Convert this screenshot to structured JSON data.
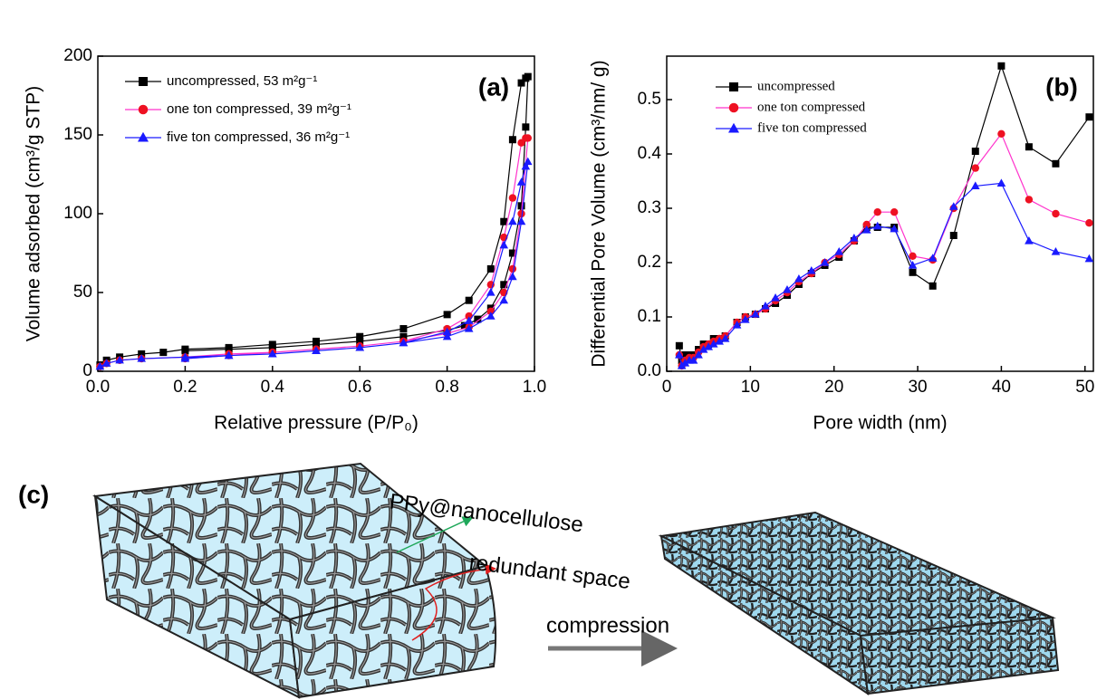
{
  "chart_data": [
    {
      "type": "line",
      "title": "(a)",
      "xlabel": "Relative pressure (P/P₀)",
      "ylabel": "Volume adsorbed (cm³/g STP)",
      "xlim": [
        0,
        1
      ],
      "ylim": [
        0,
        200
      ],
      "xticks": [
        {
          "value": 0,
          "label": "0.0"
        },
        {
          "value": 0.2,
          "label": "0.2"
        },
        {
          "value": 0.4,
          "label": "0.4"
        },
        {
          "value": 0.6,
          "label": "0.6"
        },
        {
          "value": 0.8,
          "label": "0.8"
        },
        {
          "value": 1,
          "label": "1.0"
        }
      ],
      "yticks": [
        0,
        50,
        100,
        150,
        200
      ],
      "series": [
        {
          "name": "uncompressed, 53 m²g⁻¹",
          "color": "#000000",
          "line_color": "#000000",
          "marker": "square",
          "x": [
            0.005,
            0.02,
            0.05,
            0.1,
            0.15,
            0.2,
            0.3,
            0.4,
            0.5,
            0.6,
            0.7,
            0.8,
            0.85,
            0.9,
            0.93,
            0.95,
            0.97,
            0.98,
            0.985,
            0.98,
            0.97,
            0.95,
            0.93,
            0.9,
            0.87,
            0.84,
            0.8,
            0.7,
            0.6,
            0.5,
            0.4,
            0.3,
            0.2
          ],
          "values": [
            4,
            7,
            9,
            11,
            12,
            14,
            15,
            17,
            19,
            22,
            27,
            36,
            45,
            65,
            95,
            147,
            183,
            186,
            187,
            155,
            105,
            75,
            55,
            40,
            33,
            29,
            26,
            22,
            19,
            17,
            15,
            14,
            13
          ]
        },
        {
          "name": "one ton compressed, 39 m²g⁻¹",
          "color": "#ee1122",
          "line_color": "#ff33cc",
          "marker": "circle",
          "x": [
            0.005,
            0.02,
            0.05,
            0.1,
            0.2,
            0.3,
            0.4,
            0.5,
            0.6,
            0.7,
            0.8,
            0.85,
            0.9,
            0.93,
            0.95,
            0.97,
            0.98,
            0.985,
            0.97,
            0.95,
            0.93,
            0.9,
            0.85,
            0.8,
            0.7,
            0.6,
            0.5,
            0.4,
            0.3,
            0.2
          ],
          "values": [
            3,
            5,
            7,
            8,
            9,
            11,
            12,
            14,
            16,
            19,
            27,
            35,
            55,
            85,
            110,
            145,
            148,
            148,
            100,
            65,
            50,
            38,
            28,
            24,
            19,
            16,
            14,
            12,
            10,
            8
          ]
        },
        {
          "name": "five ton compressed, 36 m²g⁻¹",
          "color": "#1a1aff",
          "line_color": "#1a1aff",
          "marker": "triangle",
          "x": [
            0.005,
            0.02,
            0.05,
            0.1,
            0.2,
            0.3,
            0.4,
            0.5,
            0.6,
            0.7,
            0.8,
            0.85,
            0.9,
            0.93,
            0.95,
            0.97,
            0.98,
            0.985,
            0.97,
            0.95,
            0.93,
            0.9,
            0.85,
            0.8,
            0.7,
            0.6,
            0.5,
            0.4,
            0.3,
            0.2
          ],
          "values": [
            3,
            5,
            7,
            8,
            9,
            10,
            11,
            13,
            15,
            18,
            25,
            32,
            50,
            80,
            95,
            120,
            130,
            133,
            95,
            60,
            45,
            35,
            27,
            22,
            18,
            15,
            13,
            11,
            10,
            8
          ]
        }
      ]
    },
    {
      "type": "line",
      "title": "(b)",
      "xlabel": "Pore width (nm)",
      "ylabel": "Differential Pore Volume (cm³/nm/ g)",
      "xlim": [
        0,
        51
      ],
      "ylim": [
        0,
        0.58
      ],
      "xticks": [
        0,
        10,
        20,
        30,
        40,
        50
      ],
      "yticks": [
        {
          "value": 0,
          "label": "0.0"
        },
        0.1,
        0.2,
        0.3,
        0.4,
        0.5
      ],
      "x": [
        1.5,
        1.8,
        2.2,
        2.7,
        3.2,
        3.8,
        4.4,
        5,
        5.6,
        6.3,
        7,
        8.4,
        9.4,
        10.6,
        11.8,
        13,
        14.4,
        15.8,
        17.3,
        18.9,
        20.6,
        22.4,
        23.9,
        25.2,
        27.2,
        29.4,
        31.8,
        34.3,
        36.9,
        40,
        43.3,
        46.5,
        50.5
      ],
      "series": [
        {
          "name": "uncompressed",
          "color": "#000000",
          "line_color": "#000000",
          "marker": "square",
          "values": [
            0.047,
            0.02,
            0.03,
            0.03,
            0.03,
            0.04,
            0.05,
            0.05,
            0.06,
            0.06,
            0.065,
            0.09,
            0.1,
            0.105,
            0.115,
            0.125,
            0.14,
            0.16,
            0.18,
            0.195,
            0.21,
            0.24,
            0.265,
            0.265,
            0.265,
            0.182,
            0.157,
            0.25,
            0.405,
            0.562,
            0.413,
            0.382,
            0.468
          ]
        },
        {
          "name": "one ton compressed",
          "color": "#ee1122",
          "line_color": "#ff33cc",
          "marker": "circle",
          "values": [
            0.03,
            0.01,
            0.02,
            0.025,
            0.025,
            0.035,
            0.045,
            0.05,
            0.055,
            0.06,
            0.065,
            0.09,
            0.1,
            0.105,
            0.115,
            0.13,
            0.145,
            0.165,
            0.18,
            0.2,
            0.215,
            0.24,
            0.27,
            0.293,
            0.293,
            0.212,
            0.205,
            0.3,
            0.374,
            0.437,
            0.316,
            0.29,
            0.273
          ]
        },
        {
          "name": "five ton compressed",
          "color": "#1a1aff",
          "line_color": "#1a1aff",
          "marker": "triangle",
          "values": [
            0.03,
            0.01,
            0.015,
            0.02,
            0.02,
            0.03,
            0.04,
            0.045,
            0.05,
            0.055,
            0.06,
            0.085,
            0.095,
            0.105,
            0.12,
            0.135,
            0.15,
            0.17,
            0.185,
            0.2,
            0.22,
            0.245,
            0.26,
            0.267,
            0.262,
            0.195,
            0.208,
            0.303,
            0.341,
            0.346,
            0.24,
            0.22,
            0.207
          ]
        }
      ]
    }
  ],
  "figure_c": {
    "label": "(c)",
    "fiber_label": "PPy@nanocellulose",
    "space_label": "redundant space",
    "arrow_label": "compression"
  }
}
